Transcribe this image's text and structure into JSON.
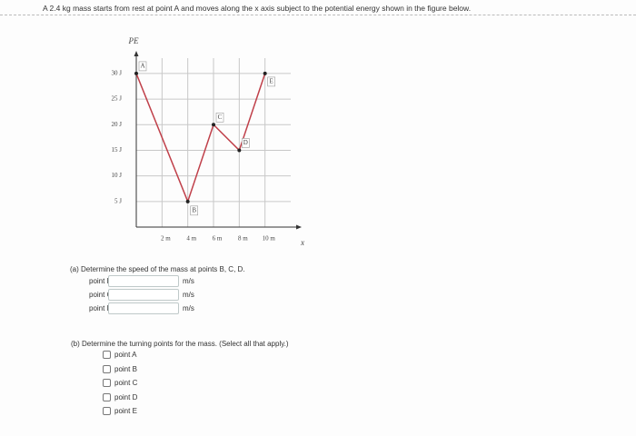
{
  "problem": "A 2.4 kg mass starts from rest at point A and moves along the x axis subject to the potential energy shown in the figure below.",
  "chart_data": {
    "type": "line",
    "y_label": "PE",
    "x_label": "x",
    "x": [
      0,
      4,
      6,
      8,
      10
    ],
    "values": [
      30,
      5,
      20,
      15,
      30
    ],
    "point_labels": [
      "A",
      "B",
      "C",
      "D",
      "E"
    ],
    "color": "#c0404a",
    "grid": true,
    "xlim": [
      0,
      12
    ],
    "ylim": [
      0,
      33
    ],
    "xticks": [
      {
        "value": 2,
        "label": "2 m"
      },
      {
        "value": 4,
        "label": "4 m"
      },
      {
        "value": 6,
        "label": "6 m"
      },
      {
        "value": 8,
        "label": "8 m"
      },
      {
        "value": 10,
        "label": "10 m"
      }
    ],
    "yticks": [
      {
        "value": 5,
        "label": "5 J"
      },
      {
        "value": 10,
        "label": "10 J"
      },
      {
        "value": 15,
        "label": "15 J"
      },
      {
        "value": 20,
        "label": "20 J"
      },
      {
        "value": 25,
        "label": "25 J"
      },
      {
        "value": 30,
        "label": "30 J"
      }
    ]
  },
  "part_a": {
    "question": "(a) Determine the speed of the mass at points B, C, D.",
    "rows": [
      {
        "label": "point B",
        "unit": "m/s"
      },
      {
        "label": "point C",
        "unit": "m/s"
      },
      {
        "label": "point D",
        "unit": "m/s"
      }
    ]
  },
  "part_b": {
    "question": "(b) Determine the turning points for the mass. (Select all that apply.)",
    "options": [
      "point A",
      "point B",
      "point C",
      "point D",
      "point E"
    ]
  }
}
